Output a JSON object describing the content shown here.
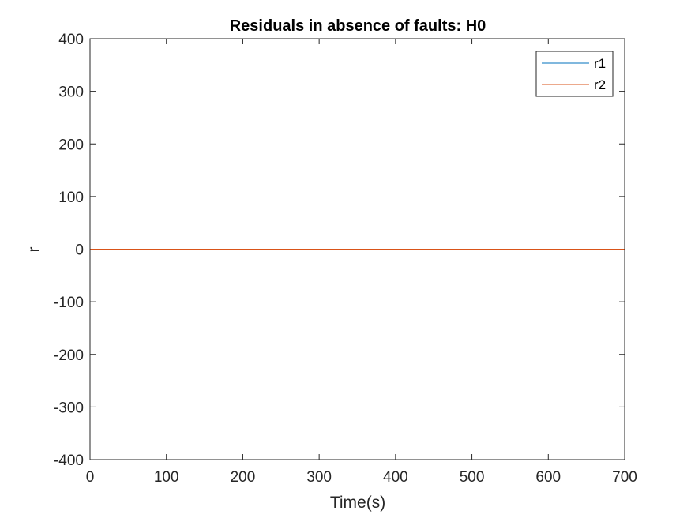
{
  "chart_data": {
    "type": "line",
    "title": "Residuals in absence of faults: H0",
    "xlabel": "Time(s)",
    "ylabel": "r",
    "xlim": [
      0,
      700
    ],
    "ylim": [
      -400,
      400
    ],
    "xticks": [
      0,
      100,
      200,
      300,
      400,
      500,
      600,
      700
    ],
    "yticks": [
      -400,
      -300,
      -200,
      -100,
      0,
      100,
      200,
      300,
      400
    ],
    "grid": false,
    "legend_location": "top-right",
    "series": [
      {
        "name": "r1",
        "color": "#0072bd",
        "x": [
          0,
          50,
          100,
          150,
          200,
          250,
          300,
          350,
          400,
          450,
          500,
          550,
          600,
          650,
          700
        ],
        "y": [
          0,
          0,
          0,
          0,
          0,
          0,
          0,
          0,
          0,
          0,
          0,
          0,
          0,
          0,
          0
        ]
      },
      {
        "name": "r2",
        "color": "#d95319",
        "x": [
          0,
          50,
          100,
          150,
          200,
          250,
          300,
          350,
          400,
          450,
          500,
          550,
          600,
          650,
          700
        ],
        "y": [
          0,
          0,
          0,
          0,
          0,
          0,
          0,
          0,
          0,
          0,
          0,
          0,
          0,
          0,
          0
        ]
      }
    ]
  }
}
